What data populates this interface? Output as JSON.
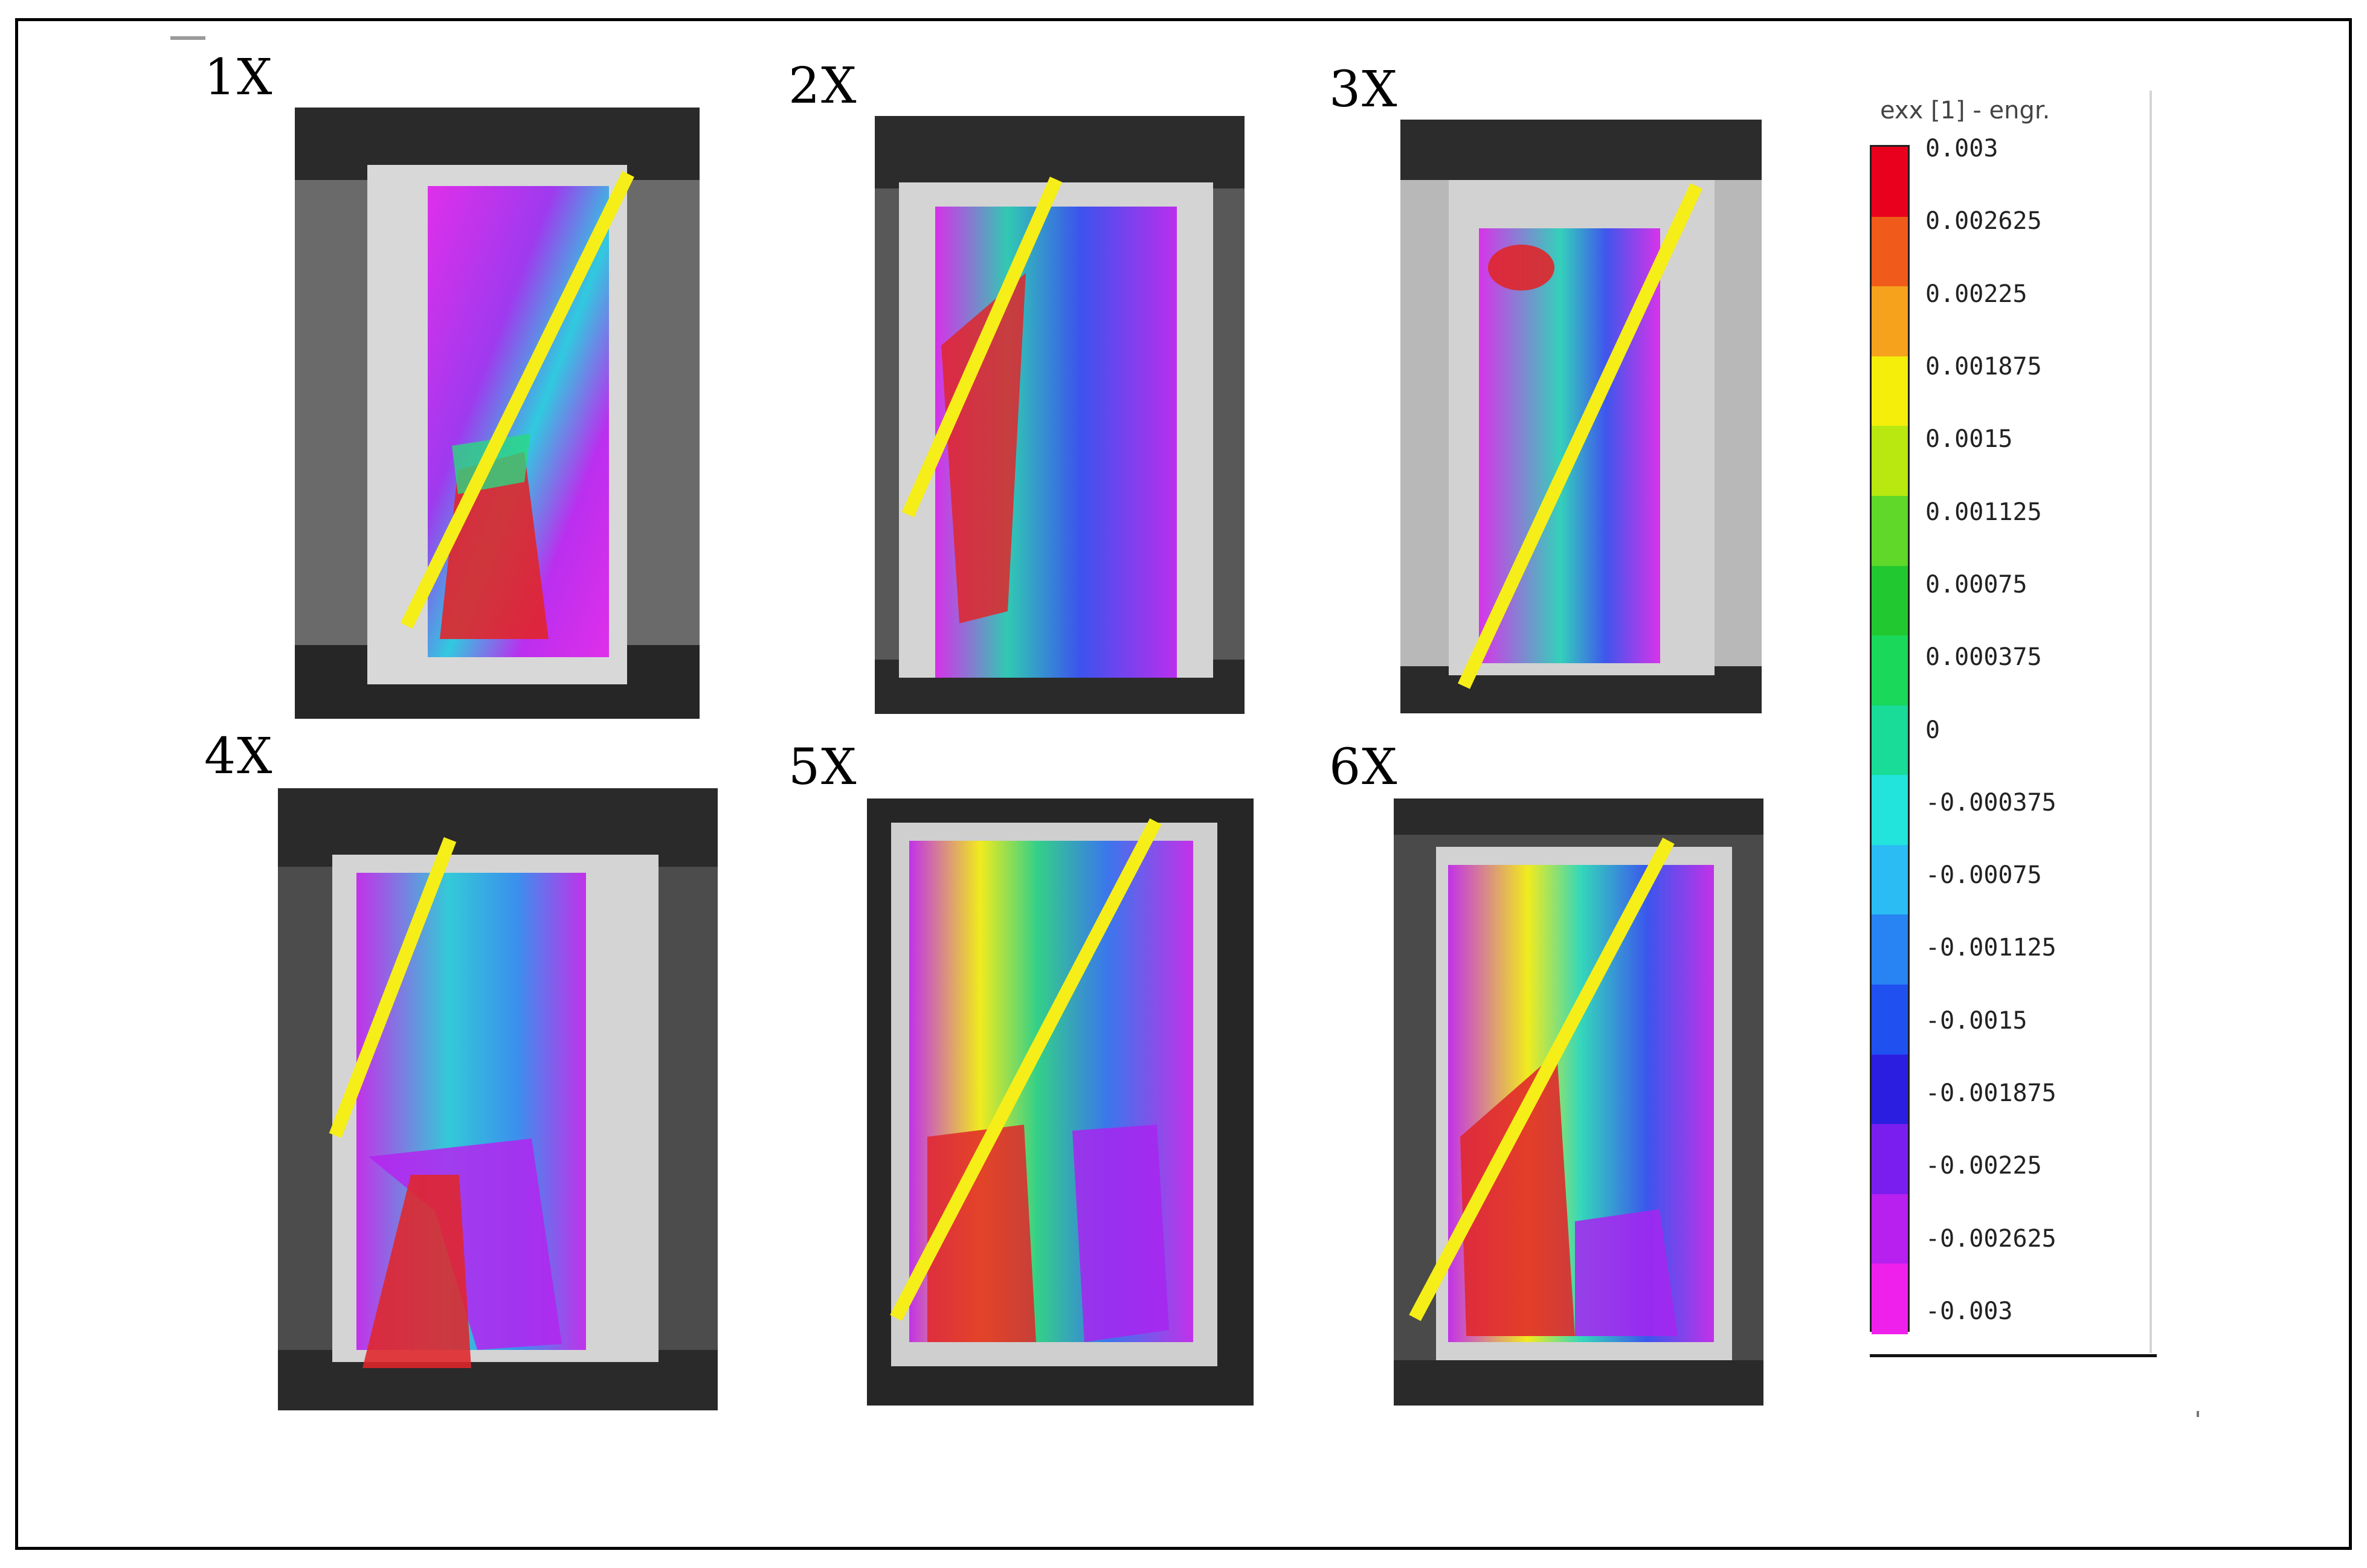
{
  "panels": [
    {
      "id": "p1",
      "label": "1X"
    },
    {
      "id": "p2",
      "label": "2X"
    },
    {
      "id": "p3",
      "label": "3X"
    },
    {
      "id": "p4",
      "label": "4X"
    },
    {
      "id": "p5",
      "label": "5X"
    },
    {
      "id": "p6",
      "label": "6X"
    }
  ],
  "colorbar": {
    "title": "exx [1] - engr.",
    "labels": [
      "0.003",
      "0.002625",
      "0.00225",
      "0.001875",
      "0.0015",
      "0.001125",
      "0.00075",
      "0.000375",
      "0",
      "-0.000375",
      "-0.00075",
      "-0.001125",
      "-0.0015",
      "-0.001875",
      "-0.00225",
      "-0.002625",
      "-0.003"
    ],
    "colors": [
      "#e8001c",
      "#f05a1a",
      "#f7a21c",
      "#f4ee0a",
      "#b8e810",
      "#5fd82a",
      "#22c830",
      "#1ad85a",
      "#18dc98",
      "#22e4dc",
      "#2abcf2",
      "#2884f2",
      "#2050f0",
      "#2c1ee0",
      "#7a1ef0",
      "#b820f0",
      "#f020ec"
    ]
  }
}
